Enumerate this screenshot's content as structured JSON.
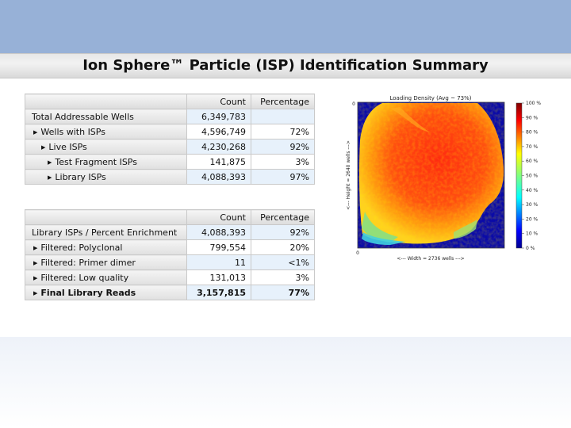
{
  "title": "Ion Sphere™ Particle (ISP) Identification Summary",
  "table1": {
    "headers": [
      "",
      "Count",
      "Percentage"
    ],
    "rows": [
      {
        "label": "Total Addressable Wells",
        "count": "6,349,783",
        "pct": "",
        "indent": 0,
        "bullet": false,
        "shade": true,
        "bold": false
      },
      {
        "label": "Wells with ISPs",
        "count": "4,596,749",
        "pct": "72%",
        "indent": 1,
        "bullet": true,
        "shade": false,
        "bold": false
      },
      {
        "label": "Live ISPs",
        "count": "4,230,268",
        "pct": "92%",
        "indent": 2,
        "bullet": true,
        "shade": true,
        "bold": false
      },
      {
        "label": "Test Fragment ISPs",
        "count": "141,875",
        "pct": "3%",
        "indent": 3,
        "bullet": true,
        "shade": false,
        "bold": false
      },
      {
        "label": "Library ISPs",
        "count": "4,088,393",
        "pct": "97%",
        "indent": 3,
        "bullet": true,
        "shade": true,
        "bold": false
      }
    ]
  },
  "table2": {
    "headers": [
      "",
      "Count",
      "Percentage"
    ],
    "rows": [
      {
        "label": "Library ISPs / Percent Enrichment",
        "count": "4,088,393",
        "pct": "92%",
        "indent": 0,
        "bullet": false,
        "shade": true,
        "bold": false
      },
      {
        "label": "Filtered: Polyclonal",
        "count": "799,554",
        "pct": "20%",
        "indent": 1,
        "bullet": true,
        "shade": false,
        "bold": false
      },
      {
        "label": "Filtered: Primer dimer",
        "count": "11",
        "pct": "<1%",
        "indent": 1,
        "bullet": true,
        "shade": true,
        "bold": false
      },
      {
        "label": "Filtered: Low quality",
        "count": "131,013",
        "pct": "3%",
        "indent": 1,
        "bullet": true,
        "shade": false,
        "bold": false
      },
      {
        "label": "Final Library Reads",
        "count": "3,157,815",
        "pct": "77%",
        "indent": 1,
        "bullet": true,
        "shade": true,
        "bold": true
      }
    ]
  },
  "heatmap": {
    "title": "Loading Density (Avg ~ 73%)",
    "xlabel": "<--- Width = 2736 wells --->",
    "ylabel": "<--- Height = 2640 wells --->",
    "x0": "0",
    "y0": "0",
    "colorbar_ticks": [
      "100 %",
      "90 %",
      "80 %",
      "70 %",
      "60 %",
      "50 %",
      "40 %",
      "30 %",
      "20 %",
      "10 %",
      "0 %"
    ],
    "average_pct": 73
  }
}
